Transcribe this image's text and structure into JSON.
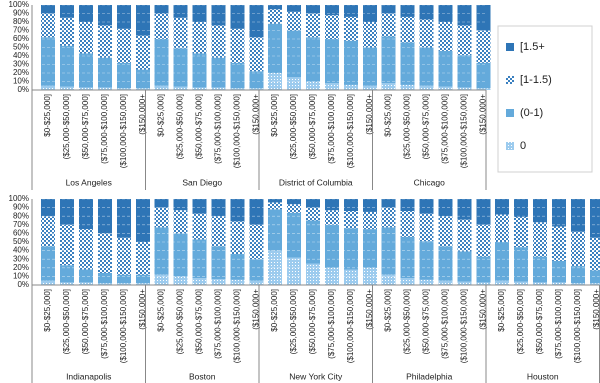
{
  "chart_data": {
    "type": "stacked_bar",
    "ylim": [
      0,
      100
    ],
    "yticks": [
      {
        "value": 0,
        "label": "0%"
      },
      {
        "value": 10,
        "label": "10%"
      },
      {
        "value": 20,
        "label": "20%"
      },
      {
        "value": 30,
        "label": "30%"
      },
      {
        "value": 40,
        "label": "40%"
      },
      {
        "value": 50,
        "label": "50%"
      },
      {
        "value": 60,
        "label": "60%"
      },
      {
        "value": 70,
        "label": "70%"
      },
      {
        "value": 80,
        "label": "80%"
      },
      {
        "value": 90,
        "label": "90%"
      },
      {
        "value": 100,
        "label": "100%"
      }
    ],
    "grid": true,
    "panels": [
      {
        "groups": [
          {
            "name": "Los Angeles",
            "categories": [
              "$0-$25,000]",
              "($25,000-$50,000]",
              "($50,000-$75,000]",
              "($75,000-$100,000]",
              "($100,000-$150,000]",
              "($150,000+"
            ]
          },
          {
            "name": "San Diego",
            "categories": [
              "$0-$25,000]",
              "($25,000-$50,000]",
              "($50,000-$75,000]",
              "($75,000-$100,000]",
              "($100,000-$150,000]",
              "($150,000+"
            ]
          },
          {
            "name": "District of Columbia",
            "categories": [
              "$0-$25,000]",
              "($25,000-$50,000]",
              "($50,000-$75,000]",
              "($75,000-$100,000]",
              "($100,000-$150,000]",
              "($150,000+"
            ]
          },
          {
            "name": "Chicago",
            "categories": [
              "$0-$25,000]",
              "($25,000-$50,000]",
              "($50,000-$75,000]",
              "($75,000-$100,000]",
              "($100,000-$150,000]",
              "($150,000+"
            ]
          }
        ]
      },
      {
        "groups": [
          {
            "name": "Indianapolis",
            "categories": [
              "$0-$25,000]",
              "($25,000-$50,000]",
              "($50,000-$75,000]",
              "($75,000-$100,000]",
              "($100,000-$150,000]",
              "($150,000+"
            ]
          },
          {
            "name": "Boston",
            "categories": [
              "$0-$25,000]",
              "($25,000-$50,000]",
              "($50,000-$75,000]",
              "($75,000-$100,000]",
              "($100,000-$150,000]",
              "($150,000+"
            ]
          },
          {
            "name": "New York City",
            "categories": [
              "$0-$25,000]",
              "($25,000-$50,000]",
              "($50,000-$75,000]",
              "($75,000-$100,000]",
              "($100,000-$150,000]",
              "($150,000+"
            ]
          },
          {
            "name": "Philadelphia",
            "categories": [
              "$0-$25,000]",
              "($25,000-$50,000]",
              "($50,000-$75,000]",
              "($75,000-$100,000]",
              "($100,000-$150,000]",
              "($150,000+"
            ]
          },
          {
            "name": "Houston",
            "categories": [
              "$0-$25,000]",
              "($25,000-$50,000]",
              "($50,000-$75,000]",
              "($75,000-$100,000]",
              "($100,000-$150,000]",
              "($150,000+"
            ]
          }
        ]
      }
    ],
    "series": [
      {
        "name": "[1.5+",
        "color": "#2e75b6",
        "values": [
          [
            [
              10,
              15,
              20,
              24,
              28,
              36
            ],
            [
              10,
              15,
              20,
              24,
              28,
              38
            ],
            [
              5,
              8,
              10,
              12,
              14,
              20
            ],
            [
              10,
              14,
              17,
              20,
              24,
              30
            ]
          ],
          [
            [
              20,
              30,
              35,
              40,
              45,
              50
            ],
            [
              10,
              13,
              17,
              20,
              26,
              30
            ],
            [
              4,
              6,
              10,
              13,
              14,
              15
            ],
            [
              10,
              14,
              17,
              20,
              24,
              30
            ],
            [
              18,
              21,
              27,
              32,
              38,
              45
            ]
          ]
        ]
      },
      {
        "name": "[1-1.5)",
        "color": "#3a80c0",
        "values": [
          [
            [
              28,
              33,
              37,
              38,
              40,
              40
            ],
            [
              30,
              36,
              37,
              38,
              40,
              40
            ],
            [
              17,
              22,
              28,
              28,
              28,
              30
            ],
            [
              27,
              30,
              33,
              34,
              35,
              38
            ]
          ],
          [
            [
              35,
              47,
              47,
              46,
              43,
              38
            ],
            [
              23,
              27,
              30,
              35,
              38,
              40
            ],
            [
              8,
              10,
              15,
              17,
              20,
              20
            ],
            [
              23,
              30,
              32,
              35,
              37,
              37
            ],
            [
              32,
              35,
              40,
              40,
              40,
              38
            ]
          ]
        ]
      },
      {
        "name": "(0-1)",
        "color": "#64aadb",
        "values": [
          [
            [
              57,
              48,
              40,
              35,
              30,
              22
            ],
            [
              55,
              45,
              40,
              35,
              30,
              20
            ],
            [
              58,
              55,
              52,
              52,
              52,
              45
            ],
            [
              55,
              50,
              45,
              42,
              38,
              30
            ]
          ],
          [
            [
              40,
              20,
              15,
              12,
              10,
              10
            ],
            [
              55,
              50,
              45,
              38,
              30,
              25
            ],
            [
              48,
              52,
              50,
              50,
              48,
              45
            ],
            [
              55,
              48,
              45,
              40,
              35,
              30
            ],
            [
              45,
              40,
              30,
              25,
              20,
              15
            ]
          ]
        ]
      },
      {
        "name": "0",
        "color": "#9ccbee",
        "values": [
          [
            [
              5,
              4,
              3,
              3,
              2,
              2
            ],
            [
              5,
              4,
              3,
              3,
              2,
              2
            ],
            [
              20,
              15,
              10,
              8,
              6,
              5
            ],
            [
              8,
              6,
              5,
              4,
              3,
              2
            ]
          ],
          [
            [
              5,
              3,
              3,
              2,
              2,
              2
            ],
            [
              12,
              10,
              8,
              7,
              6,
              5
            ],
            [
              40,
              32,
              25,
              20,
              18,
              20
            ],
            [
              12,
              8,
              6,
              5,
              4,
              3
            ],
            [
              5,
              4,
              3,
              3,
              2,
              2
            ]
          ]
        ]
      }
    ]
  }
}
